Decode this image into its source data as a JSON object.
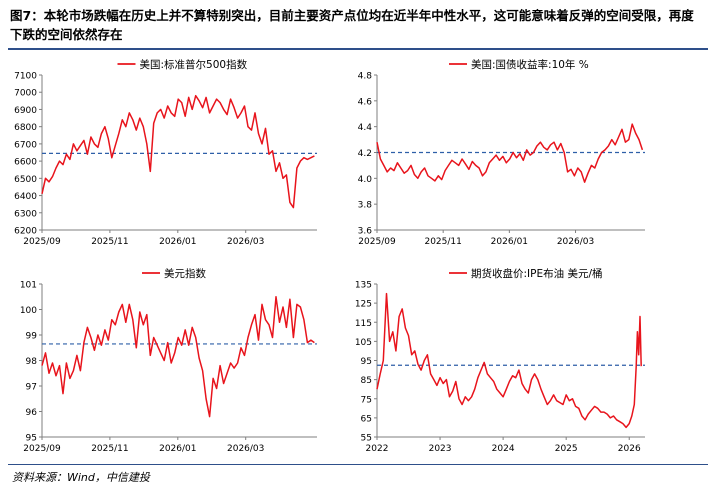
{
  "title": "图7：本轮市场跌幅在历史上并不算特别突出，目前主要资产点位均在近半年中性水平，这可能意味着反弹的空间受限，再度下跌的空间依然存在",
  "source": "资料来源：Wind，中信建投",
  "colors": {
    "series": "#e8141c",
    "reference": "#2e5fa8",
    "rule": "#2e4f8a",
    "axis": "#7f7f7f"
  },
  "chart_data": [
    {
      "type": "line",
      "title": "",
      "legend": "美国:标准普尔500指数",
      "legend_position": "top-center",
      "x_ticks": [
        "2025/09",
        "2025/11",
        "2026/01",
        "2026/03"
      ],
      "xlim": [
        0,
        31.5
      ],
      "y_ticks": [
        "6200",
        "6300",
        "6400",
        "6500",
        "6600",
        "6700",
        "6800",
        "6900",
        "7000",
        "7100"
      ],
      "ylim": [
        6200,
        7100
      ],
      "reference_line": 6645,
      "series": [
        {
          "name": "美国:标准普尔500指数",
          "x": [
            0,
            0.4,
            0.8,
            1.2,
            1.6,
            2.0,
            2.4,
            2.8,
            3.2,
            3.6,
            4.0,
            4.4,
            4.8,
            5.2,
            5.6,
            6.0,
            6.4,
            6.8,
            7.2,
            7.6,
            8.0,
            8.4,
            8.8,
            9.2,
            9.6,
            10.0,
            10.4,
            10.8,
            11.2,
            11.6,
            12.0,
            12.4,
            12.8,
            13.2,
            13.6,
            14.0,
            14.4,
            14.8,
            15.2,
            15.6,
            16.0,
            16.4,
            16.8,
            17.2,
            17.6,
            18.0,
            18.4,
            18.8,
            19.2,
            19.6,
            20.0,
            20.4,
            20.8,
            21.2,
            21.6,
            22.0,
            22.4,
            22.8,
            23.2,
            23.6,
            24.0,
            24.4,
            24.8,
            25.2,
            25.6,
            26.0,
            26.4,
            26.8,
            27.2,
            27.6,
            28.0,
            28.4,
            28.8,
            29.2,
            29.6,
            30.0,
            30.4,
            30.8,
            31.2
          ],
          "values": [
            6410,
            6500,
            6480,
            6510,
            6560,
            6600,
            6580,
            6640,
            6610,
            6700,
            6660,
            6690,
            6720,
            6640,
            6740,
            6700,
            6680,
            6760,
            6800,
            6730,
            6620,
            6690,
            6760,
            6840,
            6800,
            6880,
            6840,
            6780,
            6850,
            6800,
            6700,
            6540,
            6820,
            6880,
            6900,
            6850,
            6920,
            6880,
            6860,
            6960,
            6940,
            6860,
            6970,
            6900,
            6980,
            6950,
            6910,
            6970,
            6880,
            6920,
            6960,
            6940,
            6900,
            6870,
            6960,
            6910,
            6850,
            6880,
            6920,
            6800,
            6780,
            6880,
            6760,
            6700,
            6790,
            6640,
            6660,
            6540,
            6590,
            6500,
            6520,
            6360,
            6330,
            6560,
            6600,
            6620,
            6610,
            6620,
            6630
          ]
        }
      ]
    },
    {
      "type": "line",
      "title": "",
      "legend": "美国:国债收益率:10年 %",
      "legend_position": "top-center",
      "x_ticks": [
        "2025/09",
        "2025/11",
        "2026/01",
        "2026/03"
      ],
      "xlim": [
        0,
        31.5
      ],
      "y_ticks": [
        "3.6",
        "3.8",
        "4.0",
        "4.2",
        "4.4",
        "4.6",
        "4.8"
      ],
      "ylim": [
        3.6,
        4.8
      ],
      "reference_line": 4.2,
      "series": [
        {
          "name": "美国:国债收益率:10年",
          "x": [
            0,
            0.4,
            0.8,
            1.2,
            1.6,
            2.0,
            2.4,
            2.8,
            3.2,
            3.6,
            4.0,
            4.4,
            4.8,
            5.2,
            5.6,
            6.0,
            6.4,
            6.8,
            7.2,
            7.6,
            8.0,
            8.4,
            8.8,
            9.2,
            9.6,
            10.0,
            10.4,
            10.8,
            11.2,
            11.6,
            12.0,
            12.4,
            12.8,
            13.2,
            13.6,
            14.0,
            14.4,
            14.8,
            15.2,
            15.6,
            16.0,
            16.4,
            16.8,
            17.2,
            17.6,
            18.0,
            18.4,
            18.8,
            19.2,
            19.6,
            20.0,
            20.4,
            20.8,
            21.2,
            21.6,
            22.0,
            22.4,
            22.8,
            23.2,
            23.6,
            24.0,
            24.4,
            24.8,
            25.2,
            25.6,
            26.0,
            26.4,
            26.8,
            27.2,
            27.6,
            28.0,
            28.4,
            28.8,
            29.2,
            29.6,
            30.0,
            30.4,
            30.8,
            31.2
          ],
          "values": [
            4.28,
            4.15,
            4.1,
            4.05,
            4.08,
            4.06,
            4.12,
            4.08,
            4.04,
            4.06,
            4.1,
            4.03,
            4.0,
            4.05,
            4.08,
            4.02,
            4.0,
            3.98,
            4.02,
            3.99,
            4.06,
            4.1,
            4.14,
            4.12,
            4.1,
            4.15,
            4.11,
            4.07,
            4.13,
            4.1,
            4.08,
            4.02,
            4.05,
            4.12,
            4.15,
            4.18,
            4.14,
            4.17,
            4.12,
            4.15,
            4.2,
            4.16,
            4.19,
            4.14,
            4.22,
            4.18,
            4.2,
            4.25,
            4.28,
            4.24,
            4.22,
            4.26,
            4.28,
            4.22,
            4.27,
            4.2,
            4.05,
            4.07,
            4.02,
            4.08,
            4.05,
            3.97,
            4.04,
            4.1,
            4.08,
            4.15,
            4.2,
            4.22,
            4.25,
            4.3,
            4.26,
            4.32,
            4.38,
            4.28,
            4.3,
            4.42,
            4.35,
            4.3,
            4.22
          ]
        }
      ]
    },
    {
      "type": "line",
      "title": "",
      "legend": "美元指数",
      "legend_position": "top-left",
      "x_ticks": [
        "2025/09",
        "2025/11",
        "2026/01",
        "2026/03"
      ],
      "xlim": [
        0,
        31.5
      ],
      "y_ticks": [
        "95",
        "96",
        "97",
        "98",
        "99",
        "100",
        "101"
      ],
      "ylim": [
        95,
        101
      ],
      "reference_line": 98.65,
      "series": [
        {
          "name": "美元指数",
          "x": [
            0,
            0.4,
            0.8,
            1.2,
            1.6,
            2.0,
            2.4,
            2.8,
            3.2,
            3.6,
            4.0,
            4.4,
            4.8,
            5.2,
            5.6,
            6.0,
            6.4,
            6.8,
            7.2,
            7.6,
            8.0,
            8.4,
            8.8,
            9.2,
            9.6,
            10.0,
            10.4,
            10.8,
            11.2,
            11.6,
            12.0,
            12.4,
            12.8,
            13.2,
            13.6,
            14.0,
            14.4,
            14.8,
            15.2,
            15.6,
            16.0,
            16.4,
            16.8,
            17.2,
            17.6,
            18.0,
            18.4,
            18.8,
            19.2,
            19.6,
            20.0,
            20.4,
            20.8,
            21.2,
            21.6,
            22.0,
            22.4,
            22.8,
            23.2,
            23.6,
            24.0,
            24.4,
            24.8,
            25.2,
            25.6,
            26.0,
            26.4,
            26.8,
            27.2,
            27.6,
            28.0,
            28.4,
            28.8,
            29.2,
            29.6,
            30.0,
            30.4,
            30.8,
            31.2
          ],
          "values": [
            97.8,
            98.3,
            97.5,
            97.9,
            97.4,
            97.8,
            96.7,
            97.9,
            97.3,
            97.6,
            98.2,
            97.6,
            98.7,
            99.3,
            98.9,
            98.4,
            99.0,
            98.6,
            99.2,
            98.8,
            99.6,
            99.4,
            99.9,
            100.2,
            99.5,
            100.2,
            99.6,
            98.5,
            99.9,
            99.4,
            99.8,
            98.2,
            98.9,
            98.6,
            98.3,
            98.0,
            98.7,
            97.9,
            98.3,
            98.9,
            98.6,
            99.2,
            98.6,
            99.3,
            98.9,
            98.1,
            97.6,
            96.5,
            95.8,
            97.3,
            96.9,
            97.8,
            97.1,
            97.5,
            97.9,
            97.7,
            97.9,
            98.5,
            98.2,
            98.9,
            99.4,
            99.8,
            98.8,
            100.2,
            99.6,
            99.4,
            98.9,
            100.5,
            99.5,
            100.1,
            99.3,
            100.4,
            98.9,
            100.2,
            100.1,
            99.6,
            98.7,
            98.8,
            98.7
          ]
        }
      ]
    },
    {
      "type": "line",
      "title": "",
      "legend": "期货收盘价:IPE布油 美元/桶",
      "legend_position": "top-center",
      "x_ticks": [
        "2022",
        "2023",
        "2024",
        "2025",
        "2026"
      ],
      "xlim": [
        2022,
        2026.25
      ],
      "y_ticks": [
        "55",
        "65",
        "75",
        "85",
        "95",
        "105",
        "115",
        "125",
        "135"
      ],
      "ylim": [
        55,
        135
      ],
      "reference_line": 92.5,
      "series": [
        {
          "name": "期货收盘价:IPE布油",
          "x": [
            2022.0,
            2022.05,
            2022.1,
            2022.15,
            2022.2,
            2022.25,
            2022.3,
            2022.35,
            2022.4,
            2022.45,
            2022.5,
            2022.55,
            2022.6,
            2022.65,
            2022.7,
            2022.75,
            2022.8,
            2022.85,
            2022.9,
            2022.95,
            2023.0,
            2023.05,
            2023.1,
            2023.15,
            2023.2,
            2023.25,
            2023.3,
            2023.35,
            2023.4,
            2023.45,
            2023.5,
            2023.55,
            2023.6,
            2023.65,
            2023.7,
            2023.75,
            2023.8,
            2023.85,
            2023.9,
            2023.95,
            2024.0,
            2024.05,
            2024.1,
            2024.15,
            2024.2,
            2024.25,
            2024.3,
            2024.35,
            2024.4,
            2024.45,
            2024.5,
            2024.55,
            2024.6,
            2024.65,
            2024.7,
            2024.75,
            2024.8,
            2024.85,
            2024.9,
            2024.95,
            2025.0,
            2025.05,
            2025.1,
            2025.15,
            2025.2,
            2025.25,
            2025.3,
            2025.35,
            2025.4,
            2025.45,
            2025.5,
            2025.55,
            2025.6,
            2025.65,
            2025.7,
            2025.75,
            2025.8,
            2025.85,
            2025.9,
            2025.95,
            2026.0,
            2026.04,
            2026.08,
            2026.11,
            2026.13,
            2026.15,
            2026.17,
            2026.19
          ],
          "values": [
            80,
            88,
            95,
            130,
            105,
            110,
            100,
            118,
            122,
            112,
            108,
            98,
            100,
            93,
            90,
            95,
            98,
            88,
            85,
            82,
            86,
            83,
            85,
            76,
            79,
            84,
            75,
            72,
            76,
            74,
            76,
            80,
            86,
            90,
            94,
            88,
            86,
            84,
            80,
            78,
            76,
            80,
            84,
            87,
            86,
            90,
            83,
            80,
            78,
            85,
            88,
            85,
            80,
            76,
            72,
            74,
            77,
            74,
            73,
            72,
            77,
            74,
            75,
            71,
            70,
            66,
            64,
            67,
            69,
            71,
            70,
            68,
            68,
            67,
            65,
            66,
            64,
            63,
            62,
            60,
            62,
            66,
            72,
            92,
            110,
            98,
            118,
            92
          ]
        }
      ]
    }
  ]
}
